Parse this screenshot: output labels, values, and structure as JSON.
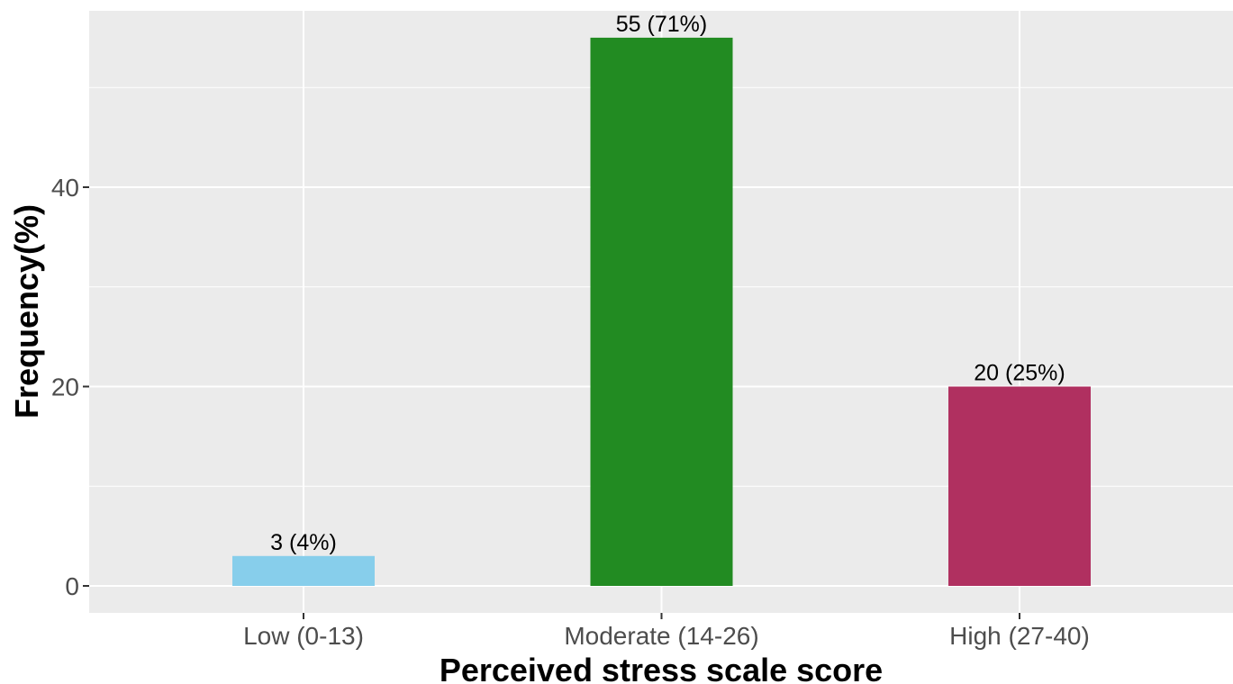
{
  "chart_data": {
    "type": "bar",
    "title": "",
    "xlabel": "Perceived stress scale score",
    "ylabel": "Frequency(%)",
    "categories": [
      "Low (0-13)",
      "Moderate (14-26)",
      "High (27-40)"
    ],
    "values": [
      3,
      55,
      20
    ],
    "bar_labels": [
      "3 (4%)",
      "55 (71%)",
      "20 (25%)"
    ],
    "colors": [
      "#87ceeb",
      "#228b22",
      "#b03060"
    ],
    "ylim": [
      0,
      57.9
    ],
    "yticks": [
      0,
      20,
      40
    ],
    "grid": true,
    "legend": "none",
    "background": "#ebebeb",
    "gridline_color": "#ffffff"
  }
}
